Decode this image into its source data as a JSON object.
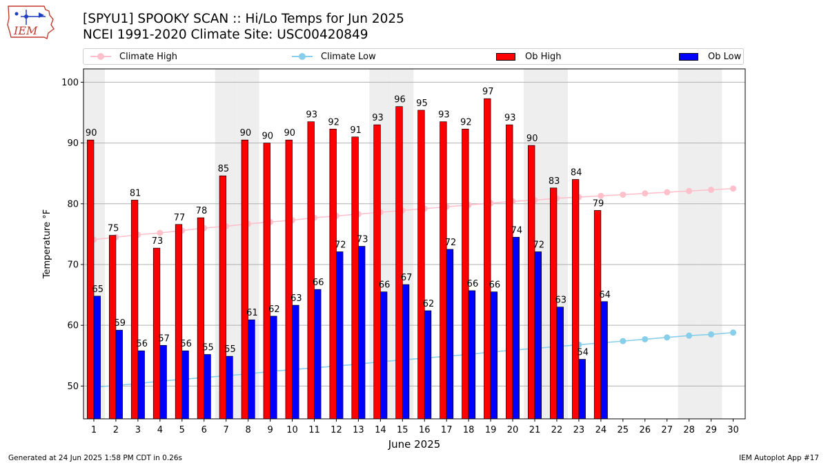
{
  "header": {
    "title_line1": "[SPYU1] SPOOKY SCAN :: Hi/Lo Temps for Jun 2025",
    "title_line2": "NCEI 1991-2020 Climate Site: USC00420849",
    "logo_text": "IEM"
  },
  "legend": {
    "climate_high": "Climate High",
    "climate_low": "Climate Low",
    "ob_high": "Ob High",
    "ob_low": "Ob Low"
  },
  "colors": {
    "ob_high": "#ff0000",
    "ob_low": "#0000ff",
    "climate_high": "#ffc0cb",
    "climate_low": "#87ceeb",
    "weekend_band": "#eeeeee",
    "grid": "#b0b0b0"
  },
  "chart_data": {
    "type": "bar",
    "title": "[SPYU1] SPOOKY SCAN :: Hi/Lo Temps for Jun 2025",
    "subtitle": "NCEI 1991-2020 Climate Site: USC00420849",
    "xlabel": "June 2025",
    "ylabel": "Temperature °F",
    "ylim": [
      44.6,
      102.2
    ],
    "yticks": [
      50,
      60,
      70,
      80,
      90,
      100
    ],
    "grid": true,
    "legend_position": "top",
    "days": [
      1,
      2,
      3,
      4,
      5,
      6,
      7,
      8,
      9,
      10,
      11,
      12,
      13,
      14,
      15,
      16,
      17,
      18,
      19,
      20,
      21,
      22,
      23,
      24,
      25,
      26,
      27,
      28,
      29,
      30
    ],
    "shaded_days": [
      1,
      7,
      8,
      14,
      15,
      21,
      22,
      28,
      29
    ],
    "series": [
      {
        "name": "Ob High",
        "kind": "bar",
        "values": [
          90.5,
          74.8,
          80.6,
          72.7,
          76.6,
          77.7,
          84.6,
          90.5,
          90.0,
          90.5,
          93.5,
          92.3,
          91.0,
          93.0,
          96.0,
          95.4,
          93.5,
          92.3,
          97.3,
          93.0,
          89.6,
          82.6,
          84.0,
          78.9
        ],
        "labels": [
          90,
          75,
          81,
          73,
          77,
          78,
          85,
          90,
          90,
          90,
          93,
          92,
          91,
          93,
          96,
          95,
          93,
          92,
          97,
          93,
          90,
          83,
          84,
          79
        ]
      },
      {
        "name": "Ob Low",
        "kind": "bar",
        "values": [
          64.8,
          59.2,
          55.8,
          56.7,
          55.8,
          55.2,
          54.9,
          60.9,
          61.5,
          63.3,
          65.9,
          72.1,
          73.0,
          65.5,
          66.7,
          62.4,
          72.5,
          65.7,
          65.5,
          74.5,
          72.1,
          63.0,
          54.4,
          63.9
        ],
        "labels": [
          65,
          59,
          56,
          57,
          56,
          55,
          55,
          61,
          62,
          63,
          66,
          72,
          73,
          66,
          67,
          62,
          72,
          66,
          66,
          74,
          72,
          63,
          54,
          64
        ]
      },
      {
        "name": "Climate High",
        "kind": "line",
        "values": [
          74.1,
          74.5,
          74.9,
          75.2,
          75.6,
          76.0,
          76.3,
          76.7,
          77.0,
          77.3,
          77.7,
          78.0,
          78.3,
          78.6,
          78.9,
          79.2,
          79.5,
          79.8,
          80.1,
          80.4,
          80.6,
          80.9,
          81.1,
          81.3,
          81.5,
          81.7,
          81.9,
          82.1,
          82.3,
          82.5
        ]
      },
      {
        "name": "Climate Low",
        "kind": "line",
        "values": [
          49.8,
          50.1,
          50.4,
          50.8,
          51.1,
          51.4,
          51.7,
          52.0,
          52.4,
          52.7,
          53.0,
          53.3,
          53.6,
          54.0,
          54.3,
          54.6,
          54.9,
          55.2,
          55.6,
          55.9,
          56.2,
          56.5,
          56.8,
          57.1,
          57.4,
          57.7,
          58.0,
          58.3,
          58.5,
          58.8
        ]
      }
    ]
  },
  "footer": {
    "generated": "Generated at 24 Jun 2025 1:58 PM CDT in 0.26s",
    "app": "IEM Autoplot App #17"
  }
}
